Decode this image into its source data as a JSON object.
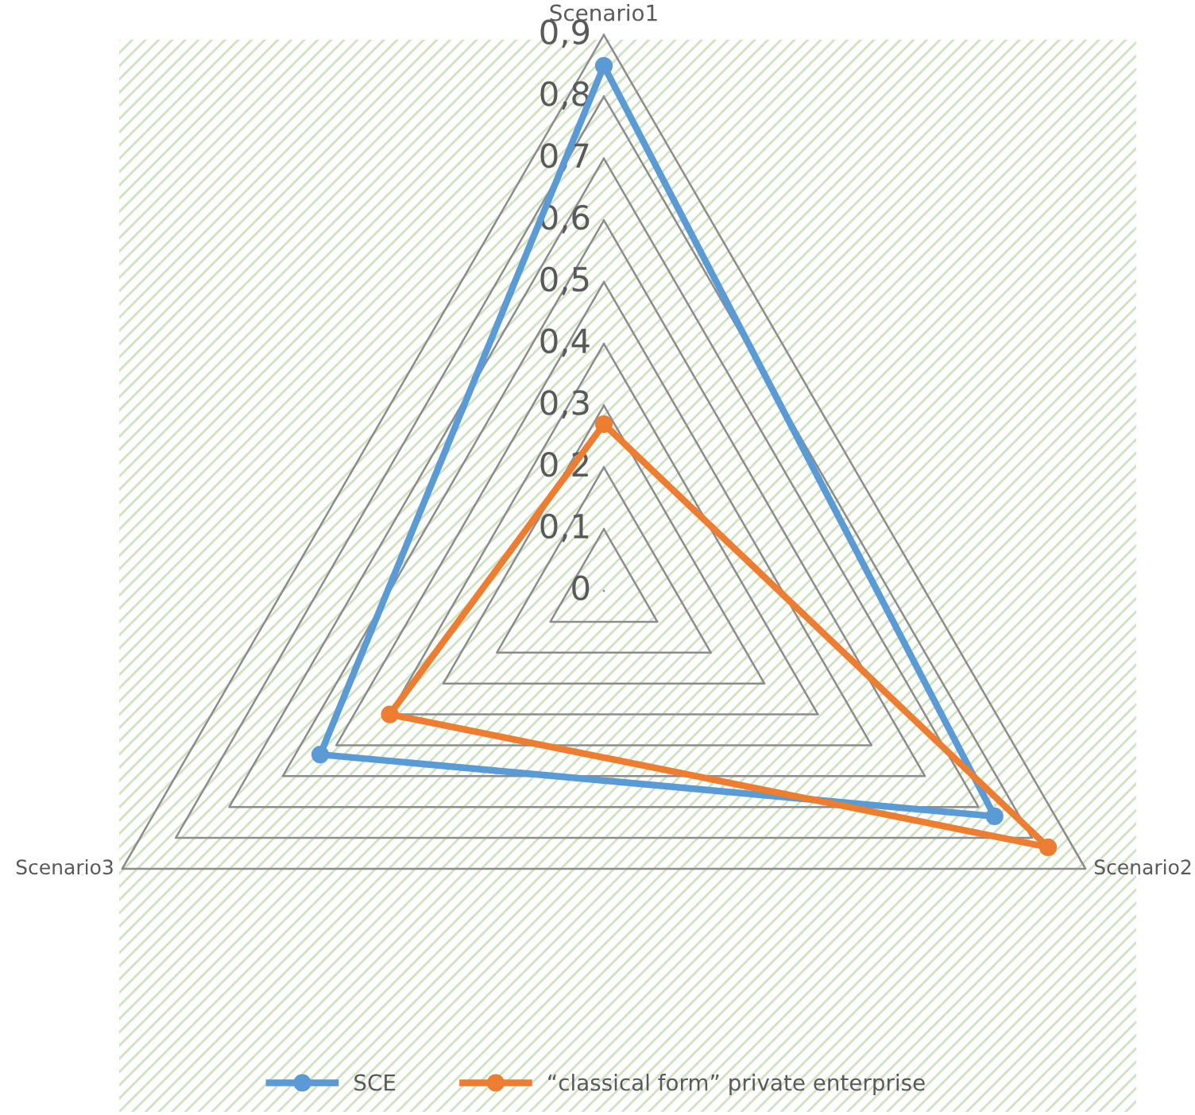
{
  "chart_data": {
    "type": "radar",
    "categories": [
      "Scenario1",
      "Scenario2",
      "Scenario3"
    ],
    "series": [
      {
        "name": "SCE",
        "color": "#5b9bd5",
        "values": [
          0.85,
          0.73,
          0.53
        ]
      },
      {
        "name": "“classical form” private enterprise",
        "color": "#ed7d31",
        "values": [
          0.27,
          0.83,
          0.4
        ]
      }
    ],
    "ylim": [
      0,
      0.9
    ],
    "yticks": [
      {
        "value": 0,
        "label": "0"
      },
      {
        "value": 0.1,
        "label": "0,1"
      },
      {
        "value": 0.2,
        "label": "0,2"
      },
      {
        "value": 0.3,
        "label": "0,3"
      },
      {
        "value": 0.4,
        "label": "0,4"
      },
      {
        "value": 0.5,
        "label": "0,5"
      },
      {
        "value": 0.6,
        "label": "0,6"
      },
      {
        "value": 0.7,
        "label": "0,7"
      },
      {
        "value": 0.8,
        "label": "0,8"
      },
      {
        "value": 0.9,
        "label": "0,9"
      }
    ],
    "marker": "circle",
    "line_style": "solid",
    "grid": true,
    "legend": "bottom"
  }
}
